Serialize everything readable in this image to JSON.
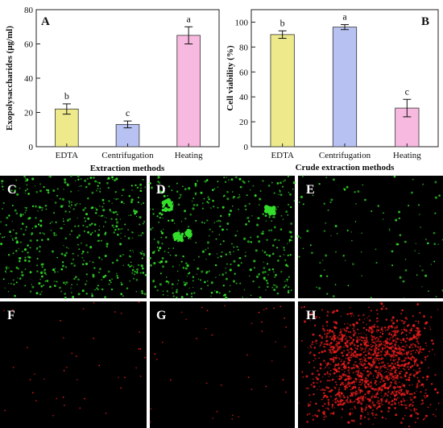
{
  "chart_data": [
    {
      "panel": "A",
      "type": "bar",
      "categories": [
        "EDTA",
        "Centrifugation",
        "Heating"
      ],
      "values": [
        22,
        13,
        65
      ],
      "errors": [
        3,
        2,
        5
      ],
      "significance": [
        "b",
        "c",
        "a"
      ],
      "colors": [
        "#eeea8c",
        "#b8c2f2",
        "#f7b9df"
      ],
      "xlabel": "Extraction methods",
      "ylabel": "Exopolysaccharides (μg/ml)",
      "yticks": [
        "0",
        "20",
        "40",
        "60",
        "80"
      ],
      "ylim": [
        0,
        80
      ],
      "grid": false
    },
    {
      "panel": "B",
      "type": "bar",
      "categories": [
        "EDTA",
        "Centrifugation",
        "Heating"
      ],
      "values": [
        90,
        96,
        31
      ],
      "errors": [
        3,
        2,
        7
      ],
      "significance": [
        "b",
        "a",
        "c"
      ],
      "colors": [
        "#eeea8c",
        "#b8c2f2",
        "#f7b9df"
      ],
      "xlabel": "Crude extraction methods",
      "ylabel": "Cell viability (%)",
      "yticks": [
        "0",
        "20",
        "40",
        "60",
        "80",
        "100"
      ],
      "ylim": [
        0,
        110
      ],
      "grid": false
    }
  ],
  "images": [
    {
      "label": "C",
      "stain": "green",
      "density": "medium"
    },
    {
      "label": "D",
      "stain": "green",
      "density": "medium-with-clusters"
    },
    {
      "label": "E",
      "stain": "green",
      "density": "sparse"
    },
    {
      "label": "F",
      "stain": "red",
      "density": "very-sparse"
    },
    {
      "label": "G",
      "stain": "red",
      "density": "very-sparse"
    },
    {
      "label": "H",
      "stain": "red",
      "density": "dense"
    }
  ],
  "colors": {
    "green_stain": "#33dd2a",
    "red_stain": "#e81c1c",
    "image_background": "#000000"
  }
}
